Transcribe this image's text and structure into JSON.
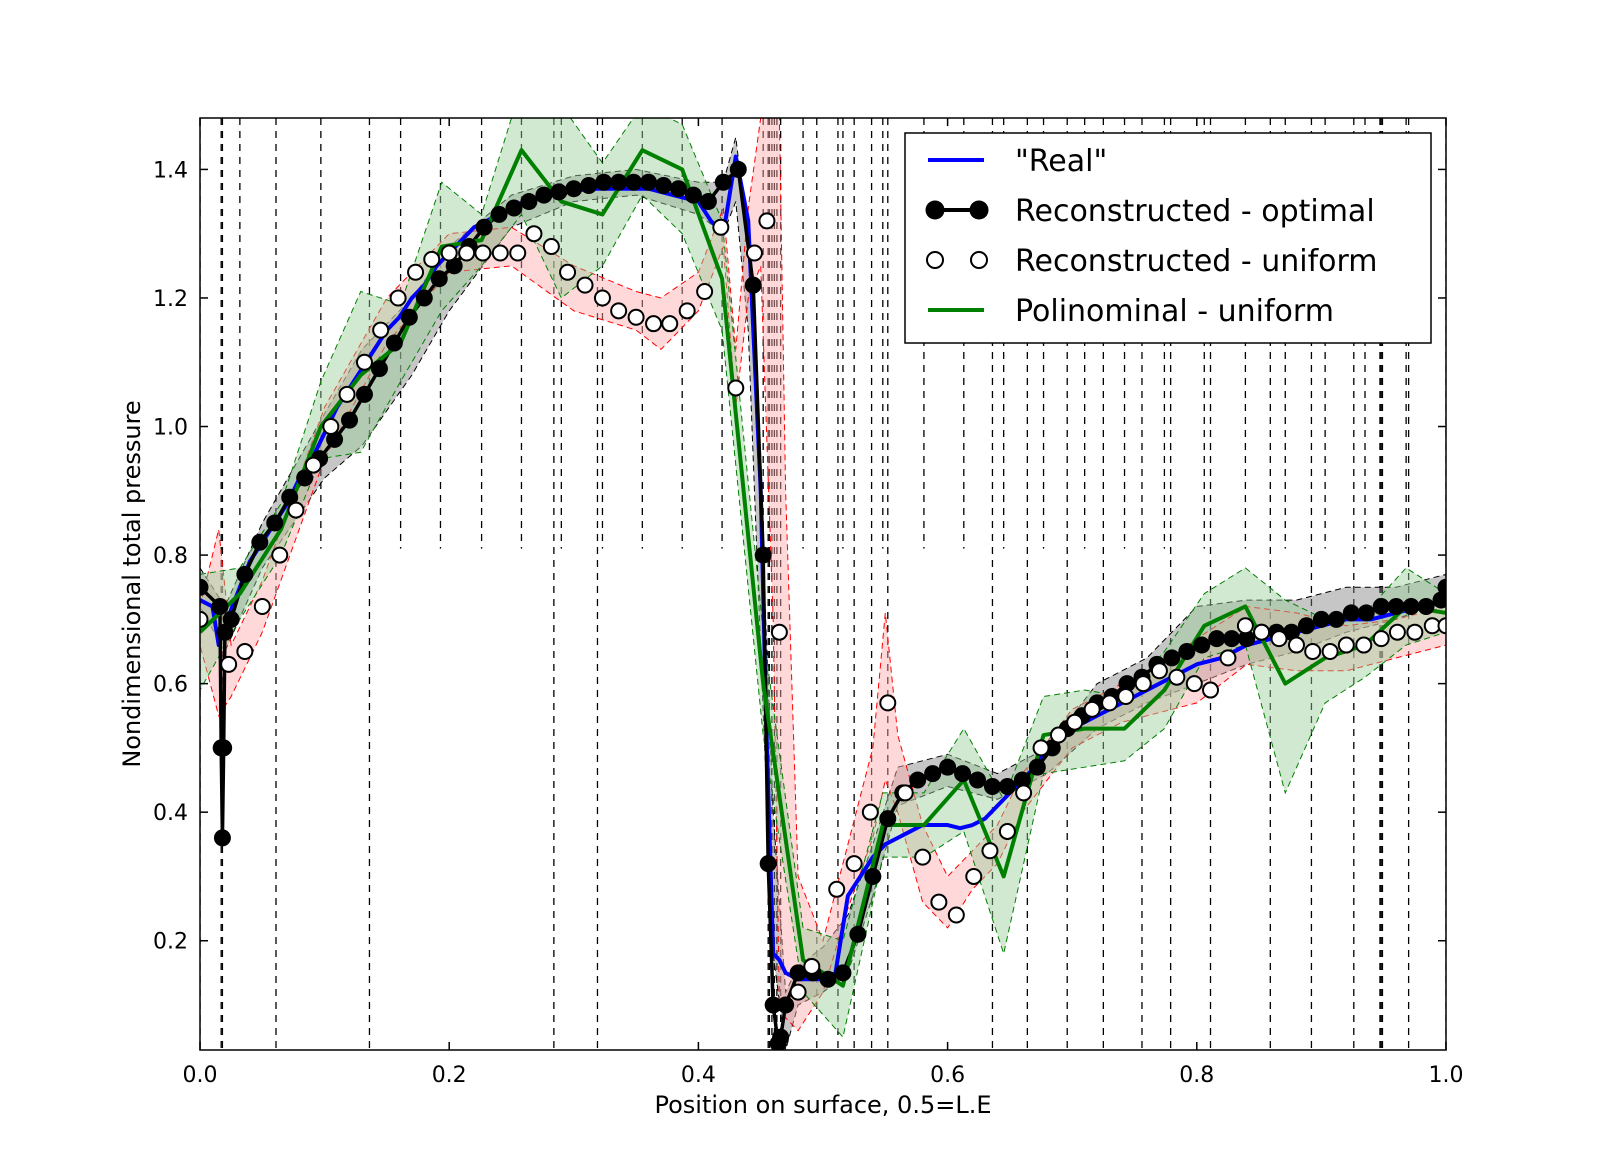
{
  "chart_data": {
    "type": "line",
    "title": "",
    "xlabel": "Position on surface, 0.5=L.E",
    "ylabel": "Nondimensional total pressure",
    "xlim": [
      0.0,
      1.0
    ],
    "ylim": [
      0.03,
      1.48
    ],
    "x_ticks": [
      0.0,
      0.2,
      0.4,
      0.6,
      0.8,
      1.0
    ],
    "x_tick_labels": [
      "0.0",
      "0.2",
      "0.4",
      "0.6",
      "0.8",
      "1.0"
    ],
    "y_ticks": [
      0.2,
      0.4,
      0.6,
      0.8,
      1.0,
      1.2,
      1.4
    ],
    "y_tick_labels": [
      "0.2",
      "0.4",
      "0.6",
      "0.8",
      "1.0",
      "1.2",
      "1.4"
    ],
    "grid": false,
    "legend_position": "top-right",
    "sensor_lines": {
      "style": "dashed vertical",
      "full_height": [
        0.0,
        0.017,
        0.018,
        0.061,
        0.136,
        0.284,
        0.319,
        0.456,
        0.457,
        0.459,
        0.461,
        0.463,
        0.466,
        0.495,
        0.512,
        0.525,
        0.539,
        0.552,
        0.636,
        0.664,
        0.696,
        0.725,
        0.756,
        0.779,
        0.811,
        0.859,
        0.892,
        0.926,
        0.947,
        0.948,
        0.949,
        0.97,
        1.0
      ],
      "upper_part": [
        0.032,
        0.097,
        0.161,
        0.193,
        0.226,
        0.258,
        0.29,
        0.323,
        0.355,
        0.387,
        0.419,
        0.452,
        0.484,
        0.516,
        0.548,
        0.581,
        0.613,
        0.645,
        0.677,
        0.71,
        0.742,
        0.774,
        0.806,
        0.839,
        0.871,
        0.903,
        0.935,
        0.968
      ]
    },
    "series": [
      {
        "name": "\"Real\"",
        "color": "#0000ff",
        "style": "line",
        "x": [
          0.0,
          0.01,
          0.015,
          0.02,
          0.03,
          0.04,
          0.05,
          0.06,
          0.07,
          0.08,
          0.09,
          0.1,
          0.11,
          0.12,
          0.13,
          0.14,
          0.15,
          0.16,
          0.17,
          0.18,
          0.19,
          0.2,
          0.21,
          0.22,
          0.23,
          0.24,
          0.25,
          0.26,
          0.27,
          0.28,
          0.29,
          0.3,
          0.31,
          0.32,
          0.33,
          0.34,
          0.35,
          0.36,
          0.37,
          0.38,
          0.39,
          0.4,
          0.41,
          0.42,
          0.43,
          0.44,
          0.45,
          0.455,
          0.46,
          0.465,
          0.47,
          0.48,
          0.49,
          0.5,
          0.51,
          0.52,
          0.53,
          0.54,
          0.55,
          0.56,
          0.57,
          0.58,
          0.59,
          0.6,
          0.61,
          0.62,
          0.63,
          0.64,
          0.65,
          0.66,
          0.67,
          0.68,
          0.69,
          0.7,
          0.72,
          0.74,
          0.76,
          0.78,
          0.8,
          0.82,
          0.84,
          0.86,
          0.88,
          0.9,
          0.92,
          0.94,
          0.96,
          0.98,
          1.0
        ],
        "y": [
          0.73,
          0.72,
          0.66,
          0.69,
          0.74,
          0.79,
          0.82,
          0.85,
          0.88,
          0.92,
          0.95,
          0.99,
          1.03,
          1.06,
          1.09,
          1.12,
          1.15,
          1.17,
          1.2,
          1.22,
          1.25,
          1.27,
          1.29,
          1.31,
          1.32,
          1.33,
          1.34,
          1.35,
          1.355,
          1.36,
          1.365,
          1.365,
          1.37,
          1.37,
          1.37,
          1.37,
          1.37,
          1.37,
          1.365,
          1.36,
          1.355,
          1.35,
          1.32,
          1.3,
          1.42,
          1.32,
          0.9,
          0.5,
          0.18,
          0.17,
          0.15,
          0.14,
          0.14,
          0.14,
          0.15,
          0.27,
          0.3,
          0.33,
          0.35,
          0.36,
          0.37,
          0.38,
          0.38,
          0.38,
          0.375,
          0.38,
          0.39,
          0.41,
          0.43,
          0.45,
          0.47,
          0.5,
          0.51,
          0.53,
          0.55,
          0.57,
          0.59,
          0.61,
          0.63,
          0.64,
          0.66,
          0.67,
          0.68,
          0.69,
          0.7,
          0.7,
          0.71,
          0.72,
          0.73
        ]
      },
      {
        "name": "Reconstructed - optimal",
        "color": "#000000",
        "style": "line-markers-filled",
        "x": [
          0.0,
          0.016,
          0.017,
          0.018,
          0.019,
          0.02,
          0.025,
          0.036,
          0.048,
          0.06,
          0.072,
          0.084,
          0.096,
          0.108,
          0.12,
          0.132,
          0.144,
          0.156,
          0.168,
          0.18,
          0.192,
          0.204,
          0.216,
          0.228,
          0.24,
          0.252,
          0.264,
          0.276,
          0.288,
          0.3,
          0.312,
          0.324,
          0.336,
          0.348,
          0.36,
          0.372,
          0.384,
          0.396,
          0.408,
          0.42,
          0.432,
          0.444,
          0.452,
          0.456,
          0.46,
          0.464,
          0.466,
          0.47,
          0.48,
          0.492,
          0.504,
          0.516,
          0.528,
          0.54,
          0.552,
          0.564,
          0.576,
          0.588,
          0.6,
          0.612,
          0.624,
          0.636,
          0.648,
          0.66,
          0.672,
          0.684,
          0.696,
          0.708,
          0.72,
          0.732,
          0.744,
          0.756,
          0.768,
          0.78,
          0.792,
          0.804,
          0.816,
          0.828,
          0.84,
          0.852,
          0.864,
          0.876,
          0.888,
          0.9,
          0.912,
          0.924,
          0.936,
          0.948,
          0.96,
          0.972,
          0.984,
          0.996,
          1.0
        ],
        "y": [
          0.75,
          0.72,
          0.5,
          0.36,
          0.5,
          0.68,
          0.7,
          0.77,
          0.82,
          0.85,
          0.89,
          0.92,
          0.95,
          0.98,
          1.01,
          1.05,
          1.09,
          1.13,
          1.17,
          1.2,
          1.23,
          1.25,
          1.28,
          1.31,
          1.33,
          1.34,
          1.35,
          1.36,
          1.365,
          1.37,
          1.375,
          1.38,
          1.38,
          1.38,
          1.38,
          1.375,
          1.37,
          1.36,
          1.35,
          1.38,
          1.4,
          1.22,
          0.8,
          0.32,
          0.1,
          0.04,
          0.05,
          0.1,
          0.15,
          0.15,
          0.14,
          0.15,
          0.21,
          0.3,
          0.39,
          0.43,
          0.45,
          0.46,
          0.47,
          0.46,
          0.45,
          0.44,
          0.44,
          0.45,
          0.47,
          0.5,
          0.53,
          0.55,
          0.57,
          0.58,
          0.6,
          0.61,
          0.63,
          0.64,
          0.65,
          0.66,
          0.67,
          0.67,
          0.67,
          0.68,
          0.68,
          0.68,
          0.69,
          0.7,
          0.7,
          0.71,
          0.71,
          0.72,
          0.72,
          0.72,
          0.72,
          0.73,
          0.75
        ]
      },
      {
        "name": "Reconstructed - uniform",
        "color": "#000000",
        "marker_fill": "#ffffff",
        "style": "markers-hollow",
        "x": [
          0.0,
          0.023,
          0.036,
          0.05,
          0.064,
          0.077,
          0.091,
          0.105,
          0.118,
          0.132,
          0.145,
          0.159,
          0.173,
          0.186,
          0.2,
          0.214,
          0.227,
          0.241,
          0.255,
          0.268,
          0.282,
          0.295,
          0.309,
          0.323,
          0.336,
          0.35,
          0.364,
          0.377,
          0.391,
          0.405,
          0.418,
          0.43,
          0.445,
          0.455,
          0.465,
          0.48,
          0.491,
          0.511,
          0.525,
          0.538,
          0.552,
          0.566,
          0.58,
          0.593,
          0.607,
          0.621,
          0.634,
          0.648,
          0.661,
          0.675,
          0.689,
          0.702,
          0.716,
          0.73,
          0.743,
          0.757,
          0.77,
          0.784,
          0.798,
          0.811,
          0.825,
          0.839,
          0.852,
          0.866,
          0.88,
          0.893,
          0.907,
          0.92,
          0.934,
          0.948,
          0.961,
          0.975,
          0.989,
          1.0
        ],
        "y": [
          0.7,
          0.63,
          0.65,
          0.72,
          0.8,
          0.87,
          0.94,
          1.0,
          1.05,
          1.1,
          1.15,
          1.2,
          1.24,
          1.26,
          1.27,
          1.27,
          1.27,
          1.27,
          1.27,
          1.3,
          1.28,
          1.24,
          1.22,
          1.2,
          1.18,
          1.17,
          1.16,
          1.16,
          1.18,
          1.21,
          1.31,
          1.06,
          1.27,
          1.32,
          0.68,
          0.12,
          0.16,
          0.28,
          0.32,
          0.4,
          0.57,
          0.43,
          0.33,
          0.26,
          0.24,
          0.3,
          0.34,
          0.37,
          0.43,
          0.5,
          0.52,
          0.54,
          0.56,
          0.57,
          0.58,
          0.6,
          0.62,
          0.61,
          0.6,
          0.59,
          0.64,
          0.69,
          0.68,
          0.67,
          0.66,
          0.65,
          0.65,
          0.66,
          0.66,
          0.67,
          0.68,
          0.68,
          0.69,
          0.69
        ]
      },
      {
        "name": "Polinominal - uniform",
        "color": "#008000",
        "style": "line",
        "x": [
          0.0,
          0.032,
          0.065,
          0.097,
          0.129,
          0.161,
          0.194,
          0.226,
          0.258,
          0.29,
          0.323,
          0.355,
          0.387,
          0.419,
          0.452,
          0.484,
          0.516,
          0.548,
          0.581,
          0.613,
          0.645,
          0.677,
          0.71,
          0.742,
          0.774,
          0.806,
          0.839,
          0.871,
          0.903,
          0.935,
          0.968,
          1.0
        ],
        "y": [
          0.68,
          0.74,
          0.84,
          1.0,
          1.08,
          1.13,
          1.28,
          1.29,
          1.43,
          1.35,
          1.33,
          1.43,
          1.4,
          1.23,
          0.6,
          0.17,
          0.13,
          0.38,
          0.38,
          0.45,
          0.3,
          0.52,
          0.53,
          0.53,
          0.59,
          0.69,
          0.72,
          0.6,
          0.64,
          0.66,
          0.72,
          0.71
        ]
      }
    ],
    "uncertainty_bands": [
      {
        "series": "Reconstructed - optimal",
        "fill": "#808080",
        "edge": "#000000",
        "x": [
          0.0,
          0.02,
          0.05,
          0.1,
          0.13,
          0.17,
          0.2,
          0.25,
          0.3,
          0.35,
          0.4,
          0.42,
          0.43,
          0.44,
          0.45,
          0.46,
          0.47,
          0.48,
          0.5,
          0.52,
          0.54,
          0.56,
          0.6,
          0.64,
          0.68,
          0.72,
          0.76,
          0.8,
          0.84,
          0.88,
          0.92,
          0.96,
          1.0
        ],
        "lower": [
          0.72,
          0.65,
          0.78,
          0.92,
          0.97,
          1.08,
          1.18,
          1.31,
          1.35,
          1.36,
          1.33,
          1.3,
          1.35,
          1.15,
          0.65,
          0.18,
          0.03,
          0.1,
          0.12,
          0.15,
          0.27,
          0.41,
          0.44,
          0.42,
          0.46,
          0.53,
          0.57,
          0.6,
          0.63,
          0.65,
          0.68,
          0.7,
          0.73
        ],
        "upper": [
          0.78,
          0.72,
          0.85,
          1.02,
          1.12,
          1.2,
          1.28,
          1.36,
          1.39,
          1.4,
          1.38,
          1.38,
          1.45,
          1.29,
          0.9,
          0.4,
          0.12,
          0.16,
          0.19,
          0.24,
          0.35,
          0.47,
          0.49,
          0.46,
          0.5,
          0.6,
          0.64,
          0.72,
          0.73,
          0.73,
          0.75,
          0.75,
          0.77
        ]
      },
      {
        "series": "Reconstructed - uniform",
        "fill": "#ffaaaa",
        "edge": "#ff0000",
        "x": [
          0.0,
          0.015,
          0.025,
          0.05,
          0.1,
          0.15,
          0.2,
          0.25,
          0.3,
          0.35,
          0.37,
          0.4,
          0.42,
          0.43,
          0.44,
          0.45,
          0.46,
          0.465,
          0.47,
          0.48,
          0.5,
          0.52,
          0.54,
          0.55,
          0.56,
          0.58,
          0.6,
          0.62,
          0.64,
          0.66,
          0.7,
          0.74,
          0.78,
          0.8,
          0.84,
          0.88,
          0.92,
          0.96,
          1.0
        ],
        "lower": [
          0.66,
          0.55,
          0.58,
          0.68,
          0.95,
          1.13,
          1.24,
          1.25,
          1.18,
          1.15,
          1.12,
          1.18,
          1.28,
          1.03,
          1.2,
          1.25,
          0.7,
          0.1,
          0.08,
          0.06,
          0.12,
          0.25,
          0.36,
          0.45,
          0.4,
          0.26,
          0.22,
          0.28,
          0.32,
          0.4,
          0.5,
          0.54,
          0.56,
          0.57,
          0.63,
          0.62,
          0.62,
          0.64,
          0.66
        ],
        "upper": [
          0.72,
          0.84,
          0.66,
          0.76,
          1.03,
          1.2,
          1.3,
          1.31,
          1.25,
          1.21,
          1.2,
          1.24,
          1.34,
          1.12,
          1.34,
          1.48,
          1.48,
          1.48,
          0.9,
          0.3,
          0.2,
          0.35,
          0.5,
          0.71,
          0.52,
          0.38,
          0.3,
          0.34,
          0.38,
          0.46,
          0.56,
          0.6,
          0.64,
          0.67,
          0.72,
          0.71,
          0.69,
          0.7,
          0.72
        ]
      },
      {
        "series": "Polinominal - uniform",
        "fill": "#99cc99",
        "edge": "#008000",
        "x": [
          0.0,
          0.032,
          0.065,
          0.097,
          0.129,
          0.161,
          0.194,
          0.226,
          0.258,
          0.29,
          0.323,
          0.355,
          0.387,
          0.419,
          0.452,
          0.484,
          0.516,
          0.548,
          0.581,
          0.613,
          0.645,
          0.677,
          0.71,
          0.742,
          0.774,
          0.806,
          0.839,
          0.871,
          0.903,
          0.935,
          0.968,
          1.0
        ],
        "lower": [
          0.59,
          0.7,
          0.8,
          0.95,
          0.96,
          1.07,
          1.18,
          1.25,
          1.33,
          1.2,
          1.25,
          1.36,
          1.3,
          1.15,
          0.52,
          0.12,
          0.05,
          0.33,
          0.33,
          0.37,
          0.18,
          0.46,
          0.47,
          0.48,
          0.53,
          0.64,
          0.66,
          0.43,
          0.57,
          0.61,
          0.66,
          0.68
        ],
        "upper": [
          0.77,
          0.78,
          0.88,
          1.07,
          1.21,
          1.19,
          1.38,
          1.33,
          1.53,
          1.5,
          1.41,
          1.5,
          1.47,
          1.32,
          0.68,
          0.22,
          0.2,
          0.43,
          0.43,
          0.53,
          0.42,
          0.58,
          0.59,
          0.58,
          0.65,
          0.74,
          0.78,
          0.73,
          0.7,
          0.71,
          0.78,
          0.74
        ]
      }
    ]
  }
}
